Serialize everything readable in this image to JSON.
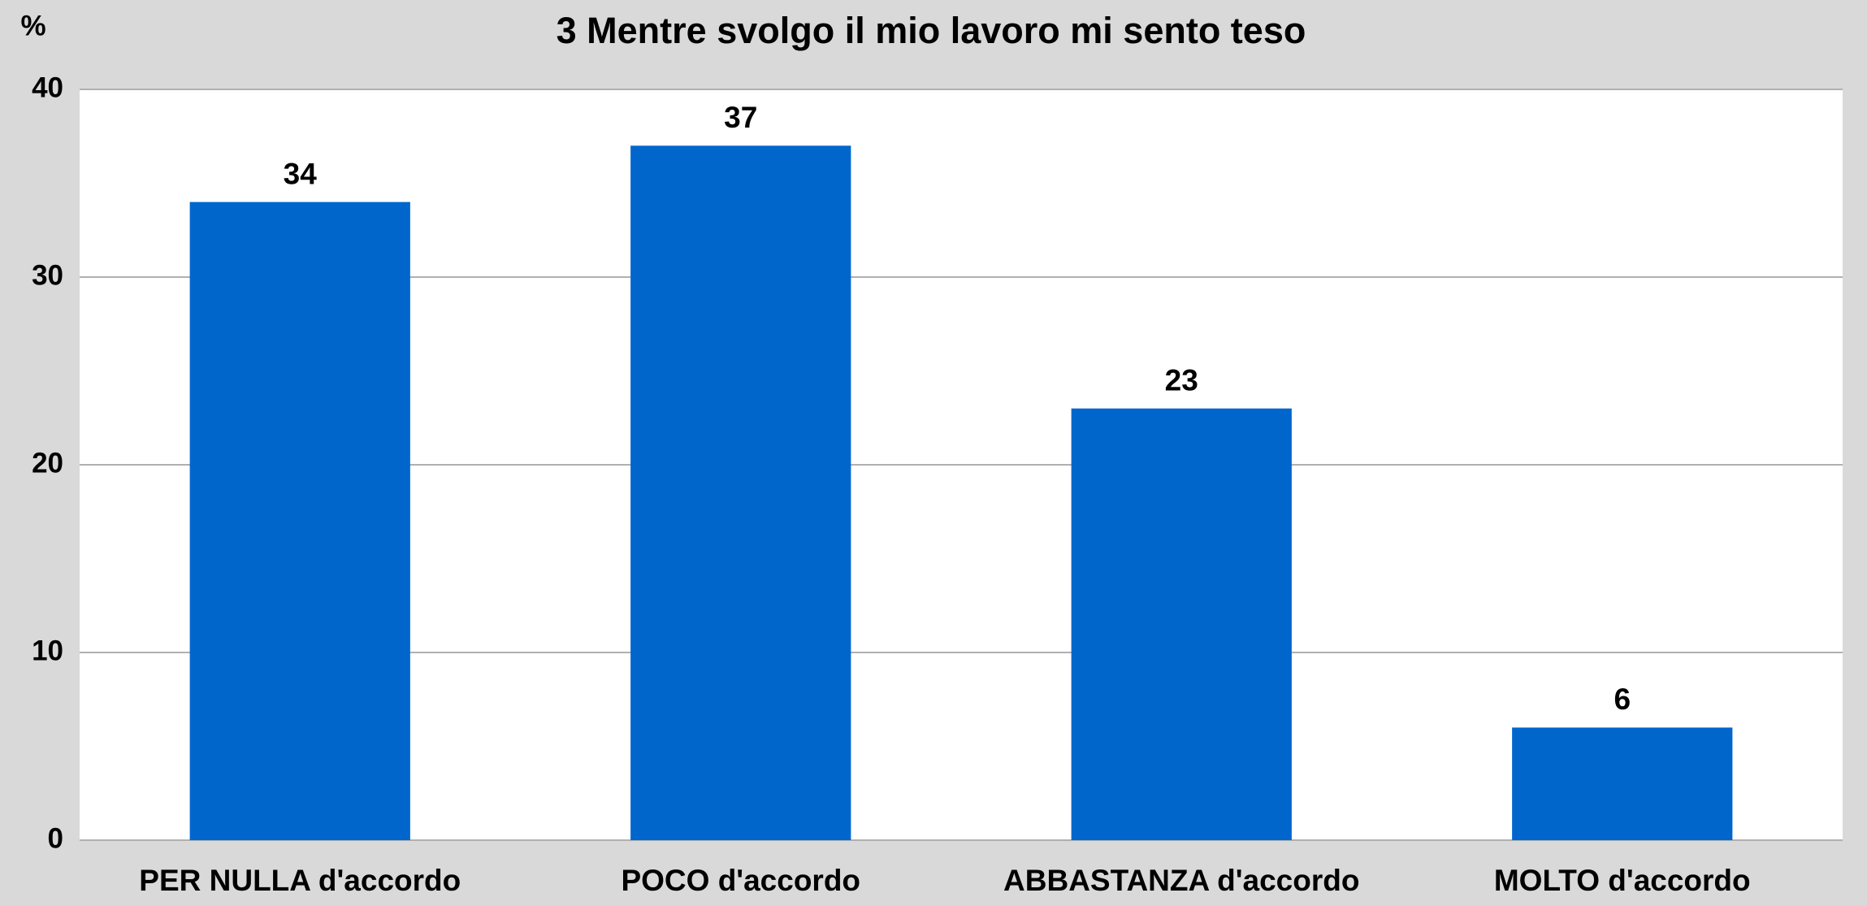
{
  "chart_data": {
    "type": "bar",
    "title": "3 Mentre svolgo il mio lavoro mi sento teso",
    "y_label": "%",
    "categories": [
      "PER NULLA d'accordo",
      "POCO d'accordo",
      "ABBASTANZA d'accordo",
      "MOLTO d'accordo"
    ],
    "values": [
      34,
      37,
      23,
      6
    ],
    "color": "#0066cc",
    "ylim": [
      0,
      40
    ],
    "yticks": [
      0,
      10,
      20,
      30,
      40
    ],
    "grid": true
  }
}
